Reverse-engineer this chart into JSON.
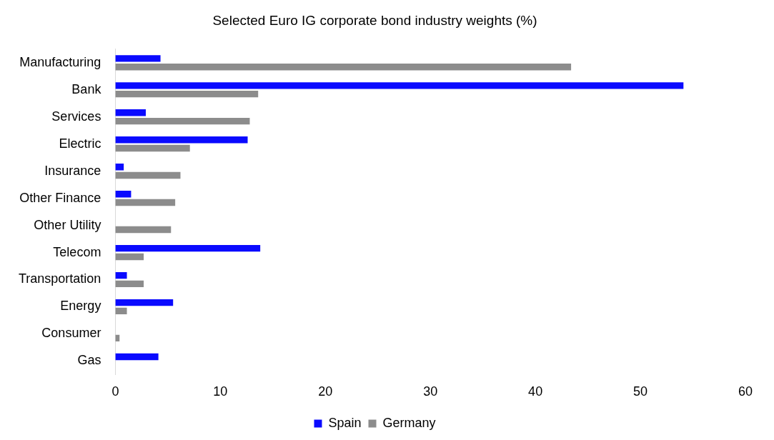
{
  "chart_data": {
    "type": "bar",
    "orientation": "horizontal",
    "title": "Selected Euro IG corporate bond industry weights (%)",
    "categories": [
      "Manufacturing",
      "Bank",
      "Services",
      "Electric",
      "Insurance",
      "Other Finance",
      "Other Utility",
      "Telecom",
      "Transportation",
      "Energy",
      "Consumer",
      "Gas"
    ],
    "series": [
      {
        "name": "Spain",
        "color": "#0a0aff",
        "values": [
          4.3,
          54.1,
          2.9,
          12.6,
          0.8,
          1.5,
          0,
          13.8,
          1.1,
          5.5,
          0,
          4.1
        ]
      },
      {
        "name": "Germany",
        "color": "#8c8c8c",
        "values": [
          43.4,
          13.6,
          12.8,
          7.1,
          6.2,
          5.7,
          5.3,
          2.7,
          2.7,
          1.1,
          0.4,
          0
        ]
      }
    ],
    "xlim": [
      0,
      60
    ],
    "xticks": [
      0,
      10,
      20,
      30,
      40,
      50,
      60
    ],
    "grid": false,
    "legend": "bottom"
  }
}
